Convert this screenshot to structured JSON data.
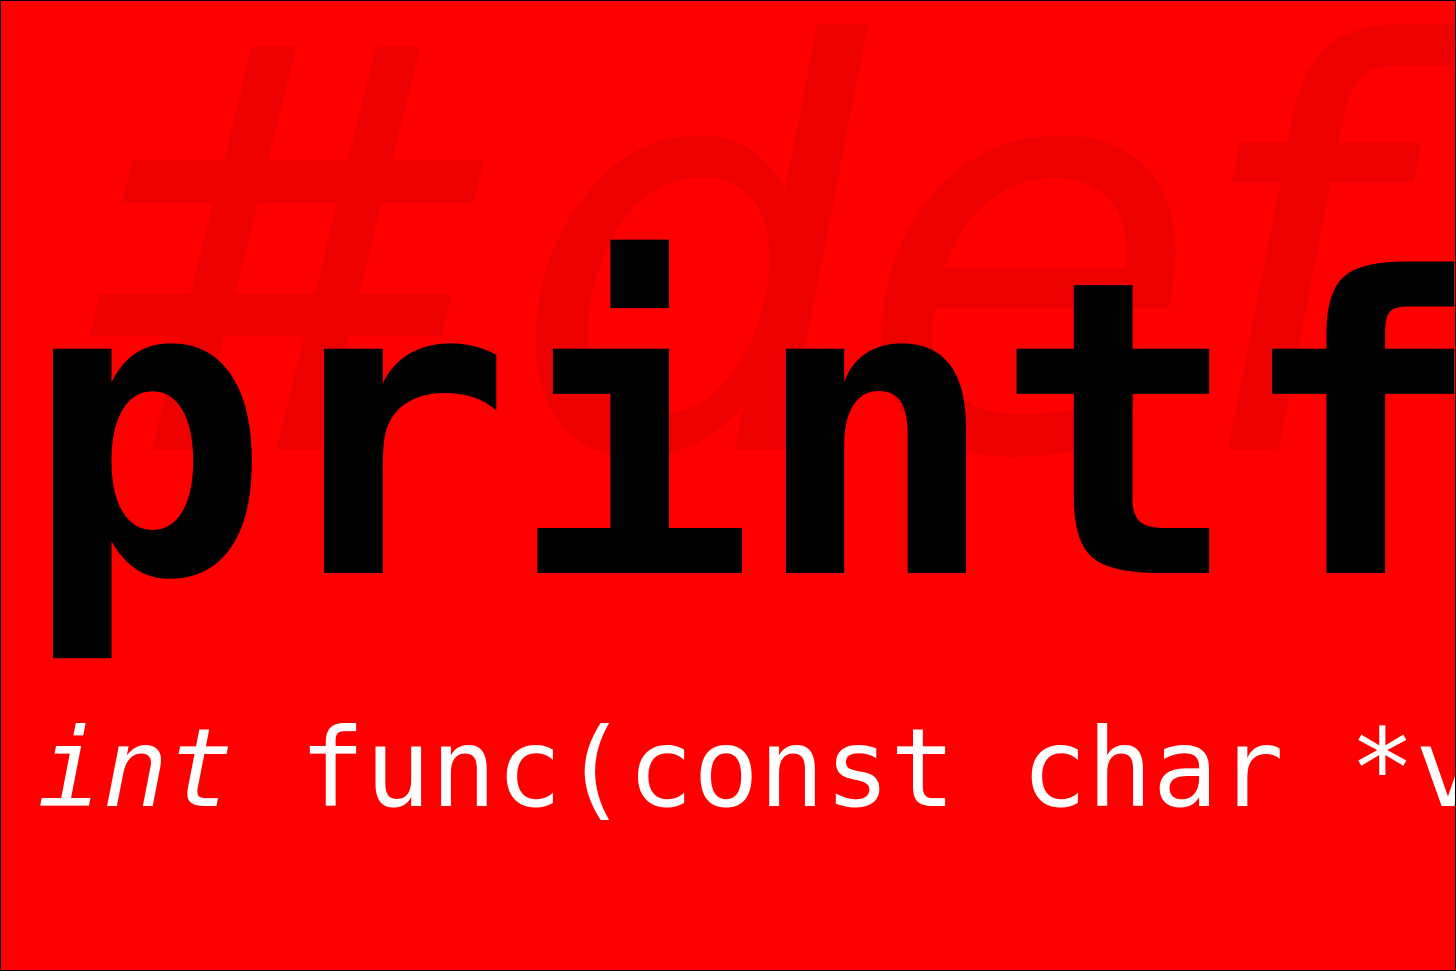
{
  "background_color": "#ff0000",
  "watermark": {
    "text": "#def",
    "color": "#ec0000"
  },
  "title": {
    "text": "printf",
    "color": "#000000"
  },
  "signature": {
    "keyword": "int",
    "rest": " func(const char *var",
    "color": "#ffffff"
  }
}
